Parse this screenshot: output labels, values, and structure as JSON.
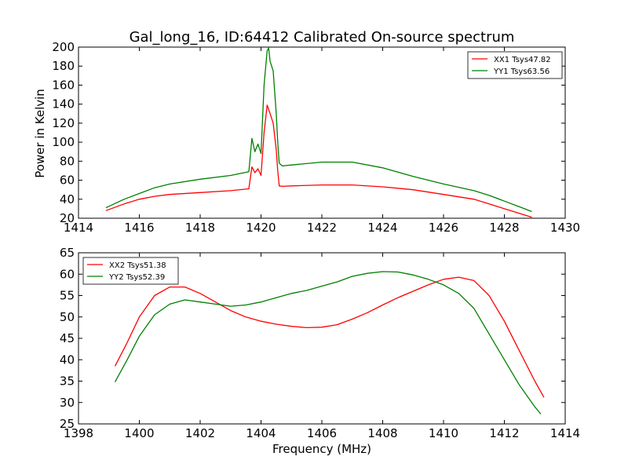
{
  "chart_data": [
    {
      "type": "line",
      "title": "Gal_long_16, ID:64412 Calibrated On-source spectrum",
      "xlabel": "",
      "ylabel": "Power in Kelvin",
      "xlim": [
        1414,
        1430
      ],
      "ylim": [
        20,
        200
      ],
      "xticks": [
        "1414",
        "1416",
        "1418",
        "1420",
        "1422",
        "1424",
        "1426",
        "1428",
        "1430"
      ],
      "yticks": [
        "20",
        "40",
        "60",
        "80",
        "100",
        "120",
        "140",
        "160",
        "180",
        "200"
      ],
      "grid": false,
      "legend_position": "top-right",
      "series": [
        {
          "name": "XX1 Tsys47.82",
          "color": "#ff0000",
          "x": [
            1414.9,
            1415.5,
            1416.0,
            1416.5,
            1417.0,
            1418.0,
            1419.0,
            1419.6,
            1419.7,
            1419.8,
            1419.9,
            1420.0,
            1420.1,
            1420.2,
            1420.3,
            1420.4,
            1420.5,
            1420.55,
            1420.6,
            1420.7,
            1421.0,
            1422.0,
            1423.0,
            1424.0,
            1425.0,
            1426.0,
            1427.0,
            1427.5,
            1428.0,
            1428.5,
            1428.9
          ],
          "y": [
            28,
            35,
            40,
            43,
            45,
            47,
            49,
            51,
            74,
            68,
            72,
            65,
            110,
            139,
            130,
            120,
            92,
            70,
            54,
            53.5,
            54,
            55,
            55,
            53,
            50,
            45,
            40,
            35,
            30,
            25,
            21
          ]
        },
        {
          "name": "YY1 Tsys63.56",
          "color": "#008000",
          "x": [
            1414.9,
            1415.5,
            1416.0,
            1416.5,
            1417.0,
            1418.0,
            1419.0,
            1419.6,
            1419.7,
            1419.8,
            1419.9,
            1420.0,
            1420.1,
            1420.2,
            1420.25,
            1420.3,
            1420.4,
            1420.5,
            1420.55,
            1420.6,
            1420.7,
            1421.0,
            1422.0,
            1423.0,
            1424.0,
            1425.0,
            1426.0,
            1427.0,
            1427.5,
            1428.0,
            1428.5,
            1428.9
          ],
          "y": [
            31,
            40,
            46,
            52,
            56,
            61,
            65,
            69,
            104,
            90,
            98,
            88,
            160,
            196,
            199,
            185,
            175,
            130,
            100,
            78,
            75,
            76,
            79,
            79,
            73,
            64,
            56,
            49,
            44,
            38,
            32,
            27
          ]
        }
      ]
    },
    {
      "type": "line",
      "title": "",
      "xlabel": "Frequency (MHz)",
      "ylabel": "",
      "xlim": [
        1398,
        1414
      ],
      "ylim": [
        25,
        65
      ],
      "xticks": [
        "1398",
        "1400",
        "1402",
        "1404",
        "1406",
        "1408",
        "1410",
        "1412",
        "1414"
      ],
      "yticks": [
        "25",
        "30",
        "35",
        "40",
        "45",
        "50",
        "55",
        "60",
        "65"
      ],
      "grid": false,
      "legend_position": "top-left",
      "series": [
        {
          "name": "XX2 Tsys51.38",
          "color": "#ff0000",
          "x": [
            1399.2,
            1399.6,
            1400.0,
            1400.5,
            1401.0,
            1401.5,
            1402.0,
            1402.5,
            1403.0,
            1403.5,
            1404.0,
            1404.5,
            1405.0,
            1405.5,
            1406.0,
            1406.5,
            1407.0,
            1407.5,
            1408.0,
            1408.5,
            1409.0,
            1409.5,
            1410.0,
            1410.5,
            1411.0,
            1411.5,
            1412.0,
            1412.5,
            1413.0,
            1413.3
          ],
          "y": [
            38.5,
            44,
            50,
            55,
            57,
            57,
            55.5,
            53.5,
            51.5,
            50,
            49,
            48.3,
            47.8,
            47.5,
            47.6,
            48.2,
            49.5,
            51,
            52.8,
            54.5,
            56,
            57.5,
            58.8,
            59.3,
            58.5,
            55,
            49,
            42,
            35,
            31.2
          ]
        },
        {
          "name": "YY2 Tsys52.39",
          "color": "#008000",
          "x": [
            1399.2,
            1399.6,
            1400.0,
            1400.5,
            1401.0,
            1401.5,
            1402.0,
            1402.5,
            1403.0,
            1403.5,
            1404.0,
            1404.5,
            1405.0,
            1405.5,
            1406.0,
            1406.5,
            1407.0,
            1407.5,
            1408.0,
            1408.5,
            1409.0,
            1409.5,
            1410.0,
            1410.5,
            1411.0,
            1411.5,
            1412.0,
            1412.5,
            1413.0,
            1413.2
          ],
          "y": [
            34.8,
            40,
            45.5,
            50.5,
            53,
            54,
            53.5,
            53,
            52.5,
            52.8,
            53.5,
            54.5,
            55.5,
            56.2,
            57.2,
            58.2,
            59.5,
            60.2,
            60.6,
            60.5,
            59.8,
            58.8,
            57.5,
            55.5,
            52,
            46,
            40,
            34,
            29,
            27.3
          ]
        }
      ]
    }
  ]
}
